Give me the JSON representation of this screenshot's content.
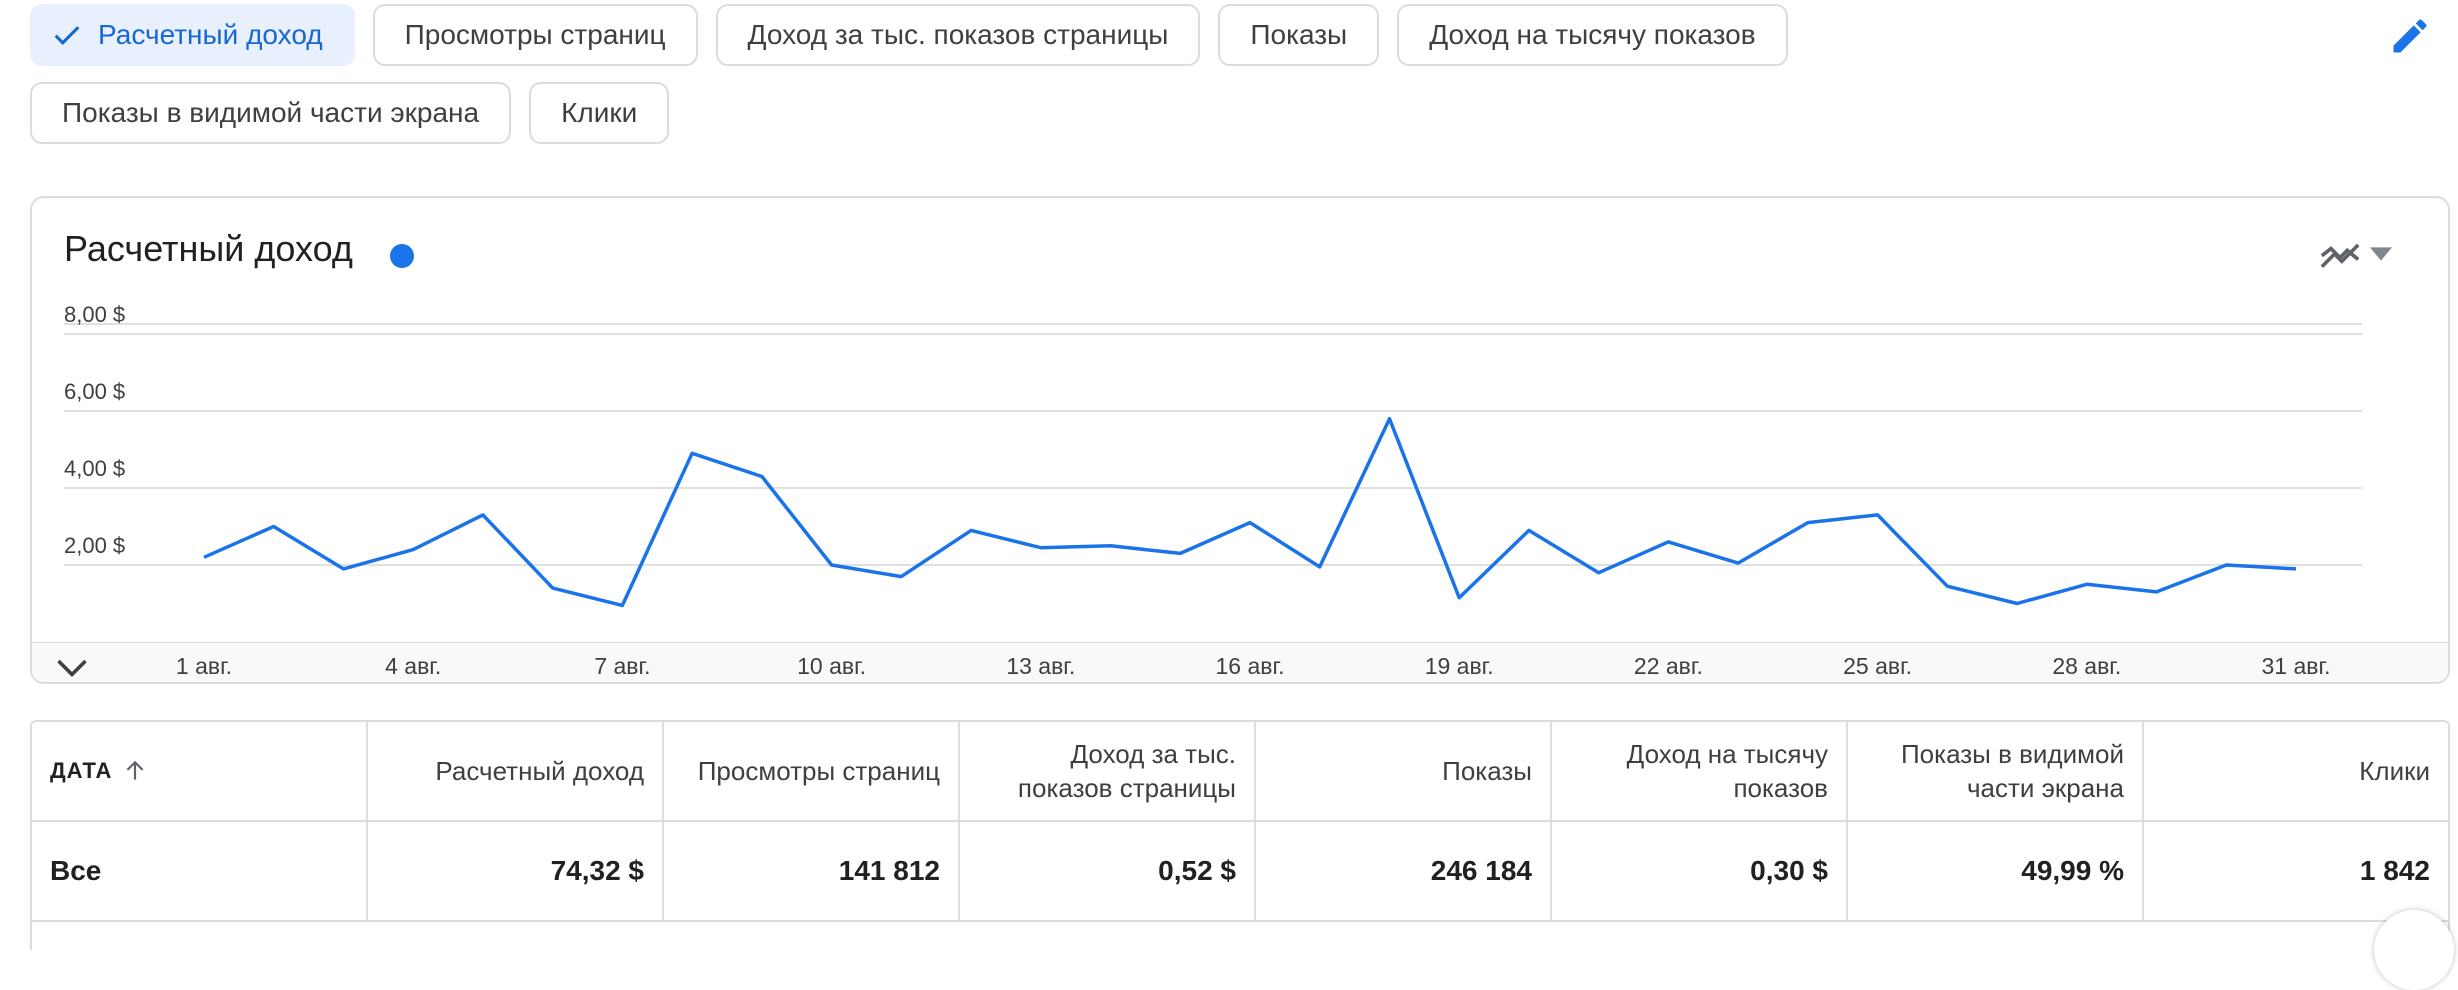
{
  "metric_chips": [
    {
      "label": "Расчетный доход",
      "selected": true
    },
    {
      "label": "Просмотры страниц",
      "selected": false
    },
    {
      "label": "Доход за тыс. показов страницы",
      "selected": false
    },
    {
      "label": "Показы",
      "selected": false
    },
    {
      "label": "Доход на тысячу показов",
      "selected": false
    },
    {
      "label": "Показы в видимой части экрана",
      "selected": false
    },
    {
      "label": "Клики",
      "selected": false
    }
  ],
  "icons": {
    "edit": "pencil-icon",
    "check": "check-icon",
    "trend": "trend-line-icon",
    "dropdown": "caret-down-icon",
    "collapse": "chevron-down-icon",
    "sort": "arrow-up-icon"
  },
  "colors": {
    "accent": "#1a73e8",
    "selected_chip_bg": "#e8f0fe",
    "selected_chip_text": "#1967d2"
  },
  "chart_data": {
    "type": "line",
    "title": "Расчетный доход",
    "series": [
      {
        "color": "#1a73e8",
        "values": [
          2.2,
          3.0,
          1.9,
          2.4,
          3.3,
          1.4,
          0.95,
          4.9,
          4.3,
          2.0,
          1.7,
          2.9,
          2.45,
          2.5,
          2.3,
          3.1,
          1.95,
          5.8,
          1.15,
          2.9,
          1.8,
          2.6,
          2.05,
          3.1,
          3.3,
          1.45,
          1.0,
          1.5,
          1.3,
          2.0,
          1.9
        ]
      }
    ],
    "x_tick_labels": [
      "1 авг.",
      "4 авг.",
      "7 авг.",
      "10 авг.",
      "13 авг.",
      "16 авг.",
      "19 авг.",
      "22 авг.",
      "25 авг.",
      "28 авг.",
      "31 авг."
    ],
    "y_tick_labels": [
      "2,00 $",
      "4,00 $",
      "6,00 $",
      "8,00 $"
    ],
    "ylim": [
      0,
      8
    ],
    "grid": true
  },
  "table": {
    "columns": [
      {
        "label": "ДАТА"
      },
      {
        "label": "Расчетный доход"
      },
      {
        "label": "Просмотры страниц"
      },
      {
        "label": "Доход за тыс. показов страницы"
      },
      {
        "label": "Показы"
      },
      {
        "label": "Доход на тысячу показов"
      },
      {
        "label": "Показы в видимой части экрана"
      },
      {
        "label": "Клики"
      }
    ],
    "rows": [
      {
        "cells": [
          "Все",
          "74,32 $",
          "141 812",
          "0,52 $",
          "246 184",
          "0,30 $",
          "49,99 %",
          "1 842"
        ]
      }
    ]
  }
}
